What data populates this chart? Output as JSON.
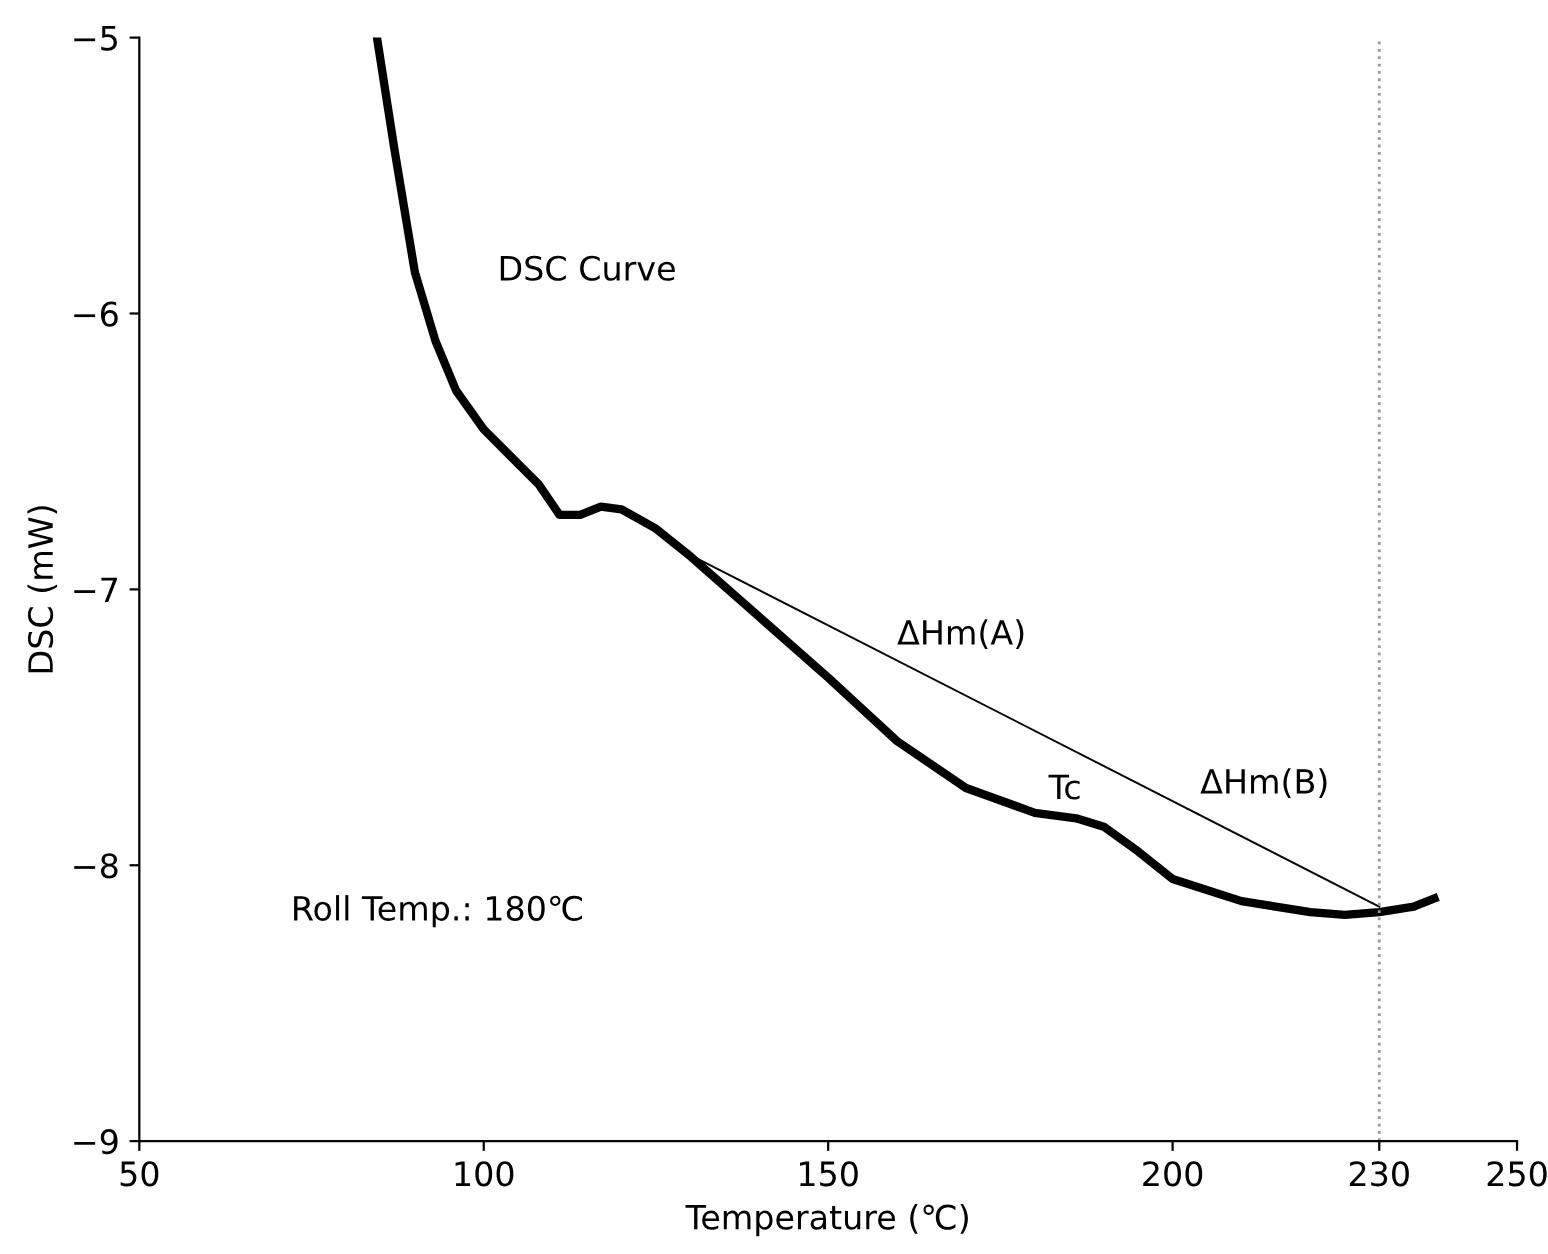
{
  "chart_data": {
    "type": "line",
    "xlabel": "Temperature (℃)",
    "ylabel": "DSC (mW)",
    "xlim": [
      50,
      250
    ],
    "ylim": [
      -9,
      -5
    ],
    "xticks": [
      50,
      100,
      150,
      200,
      230,
      250
    ],
    "yticks": [
      -9,
      -8,
      -7,
      -6,
      -5
    ],
    "grid": false,
    "legend": false,
    "marker": "none",
    "series": [
      {
        "color": "#000000",
        "line_style": "solid",
        "x": [
          84.5,
          87,
          90,
          93,
          96,
          100,
          104,
          108,
          111,
          114,
          117,
          120,
          125,
          130,
          140,
          150,
          160,
          170,
          180,
          186,
          190,
          195,
          200,
          210,
          220,
          225,
          230,
          235,
          238
        ],
        "values": [
          -5.0,
          -5.4,
          -5.85,
          -6.1,
          -6.28,
          -6.42,
          -6.52,
          -6.62,
          -6.73,
          -6.73,
          -6.7,
          -6.71,
          -6.78,
          -6.88,
          -7.1,
          -7.32,
          -7.55,
          -7.72,
          -7.81,
          -7.83,
          -7.86,
          -7.95,
          -8.05,
          -8.13,
          -8.17,
          -8.18,
          -8.17,
          -8.15,
          -8.12
        ]
      },
      {
        "color": "#000000",
        "line_style": "solid",
        "x": [
          128,
          230
        ],
        "values": [
          -6.85,
          -8.15
        ]
      }
    ],
    "ref_lines": [
      {
        "axis": "x",
        "value": 230,
        "color": "#999999",
        "line_style": "dotted"
      }
    ],
    "annotations": [
      "DSC Curve",
      "ΔHm(A)",
      "Tc",
      "ΔHm(B)",
      "Roll Temp.: 180℃"
    ]
  }
}
